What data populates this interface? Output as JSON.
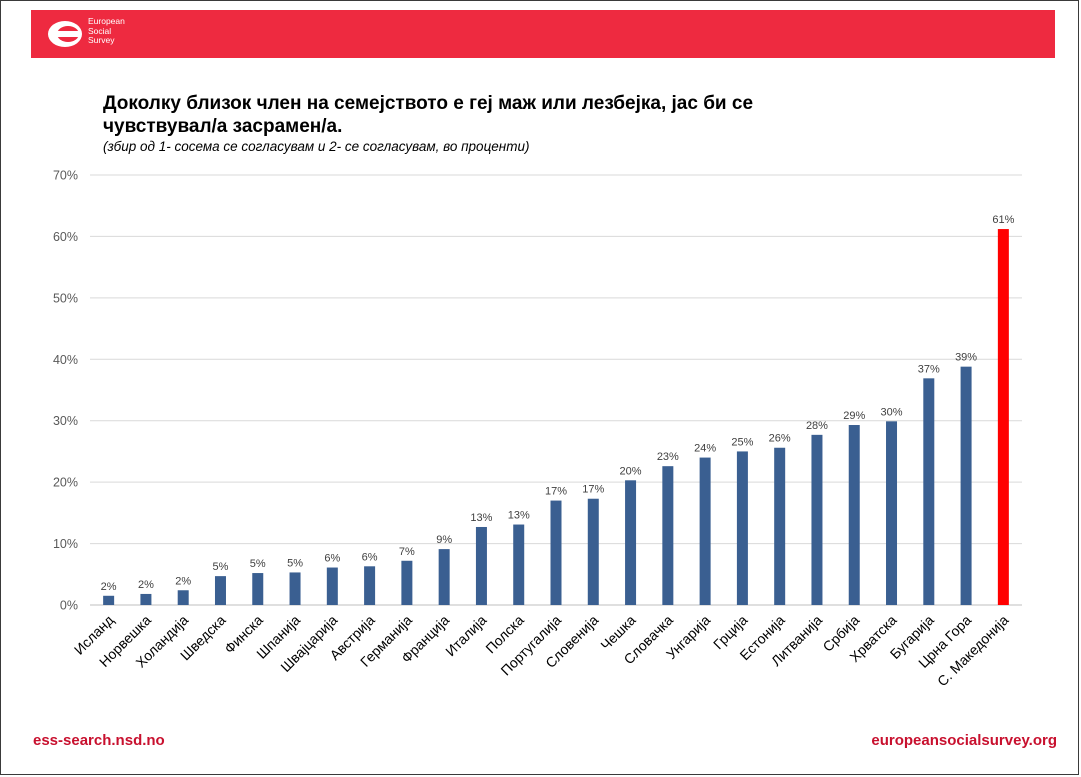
{
  "header": {
    "brand_lines": [
      "European",
      "Social",
      "Survey"
    ],
    "brand_color": "#ee2a40"
  },
  "title": "Доколку близок член на семејството е геј маж или лезбејка, јас би се чувствувал/а засрамен/а.",
  "subtitle": "(збир од 1- сосема се согласувам и 2- се согласувам, во проценти)",
  "footer": {
    "left": "ess-search.nsd.no",
    "right": "europeansocialsurvey.org"
  },
  "chart_data": {
    "type": "bar",
    "categories": [
      "Исланд",
      "Норвешка",
      "Холандија",
      "Шведска",
      "Финска",
      "Шпанија",
      "Швајцарија",
      "Австрија",
      "Германија",
      "Франција",
      "Италија",
      "Полска",
      "Португалија",
      "Словенија",
      "Чешка",
      "Словачка",
      "Унгарија",
      "Грција",
      "Естонија",
      "Литванија",
      "Србија",
      "Хрватска",
      "Бугарија",
      "Црна Гора",
      "С. Македонија"
    ],
    "values": [
      1.5,
      1.8,
      2.4,
      4.7,
      5.2,
      5.3,
      6.1,
      6.3,
      7.2,
      9.1,
      12.7,
      13.1,
      17.0,
      17.3,
      20.3,
      22.6,
      24.0,
      25.0,
      25.6,
      27.7,
      29.3,
      29.9,
      36.9,
      38.8,
      61.2
    ],
    "labels": [
      "2%",
      "2%",
      "2%",
      "5%",
      "5%",
      "5%",
      "6%",
      "6%",
      "7%",
      "9%",
      "13%",
      "13%",
      "17%",
      "17%",
      "20%",
      "23%",
      "24%",
      "25%",
      "26%",
      "28%",
      "29%",
      "30%",
      "37%",
      "39%",
      "61%"
    ],
    "highlight": "С. Македонија",
    "bar_color": "#3a5f91",
    "highlight_color": "#ff0000",
    "ylim": [
      0,
      70
    ],
    "yticks": [
      0,
      10,
      20,
      30,
      40,
      50,
      60,
      70
    ],
    "ytick_labels": [
      "0%",
      "10%",
      "20%",
      "30%",
      "40%",
      "50%",
      "60%",
      "70%"
    ],
    "grid": true,
    "xlabel": "",
    "ylabel": ""
  }
}
